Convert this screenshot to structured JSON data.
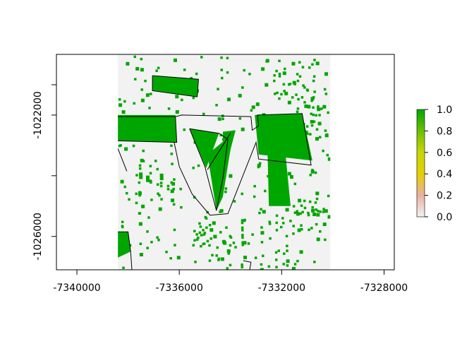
{
  "map": {
    "x_axis": {
      "ticks": [
        {
          "value": -7340000,
          "label": "-7340000"
        },
        {
          "value": -7336000,
          "label": "-7336000"
        },
        {
          "value": -7332000,
          "label": "-7332000"
        },
        {
          "value": -7328000,
          "label": "-7328000"
        }
      ]
    },
    "y_axis": {
      "ticks": [
        {
          "value": -1022000,
          "label": "-1022000"
        },
        {
          "value": -1026000,
          "label": "-1026000"
        }
      ]
    },
    "extent_data_units": {
      "xmin": -7340800,
      "xmax": -7327600,
      "ymin": -1027100,
      "ymax": -1020000
    },
    "raster_extent_data_units": {
      "xmin": -7338400,
      "xmax": -7330100,
      "ymin": -1027100,
      "ymax": -1020000
    },
    "raster_background_color": "#f2f2f2",
    "legend": {
      "ticks": [
        {
          "value": 1.0,
          "label": "1.0"
        },
        {
          "value": 0.8,
          "label": "0.8"
        },
        {
          "value": 0.6,
          "label": "0.6"
        },
        {
          "value": 0.4,
          "label": "0.4"
        },
        {
          "value": 0.2,
          "label": "0.2"
        },
        {
          "value": 0.0,
          "label": "0.0"
        }
      ],
      "color_stops": [
        {
          "value": 0.0,
          "color": "#f2f2f2"
        },
        {
          "value": 0.2,
          "color": "#eab0a0"
        },
        {
          "value": 0.4,
          "color": "#e6d000"
        },
        {
          "value": 0.6,
          "color": "#c6d800"
        },
        {
          "value": 0.8,
          "color": "#6cc000"
        },
        {
          "value": 1.0,
          "color": "#00a600"
        }
      ]
    },
    "green_color": "#00a600",
    "green_regions": [
      {
        "name": "top-parcel",
        "points": [
          [
            -7337050,
            -1020700
          ],
          [
            -7335250,
            -1020820
          ],
          [
            -7335300,
            -1021400
          ],
          [
            -7337050,
            -1021200
          ]
        ]
      },
      {
        "name": "left-parcel",
        "points": [
          [
            -7338400,
            -1022000
          ],
          [
            -7336150,
            -1022000
          ],
          [
            -7336100,
            -1022900
          ],
          [
            -7338400,
            -1022850
          ]
        ]
      },
      {
        "name": "triangle-upper",
        "points": [
          [
            -7335600,
            -1022450
          ],
          [
            -7334450,
            -1022600
          ],
          [
            -7334950,
            -1023750
          ]
        ]
      },
      {
        "name": "triangle-lower",
        "points": [
          [
            -7334900,
            -1023300
          ],
          [
            -7333900,
            -1022600
          ],
          [
            -7334300,
            -1024700
          ],
          [
            -7334550,
            -1025150
          ]
        ]
      },
      {
        "name": "triangle-right",
        "points": [
          [
            -7334300,
            -1022550
          ],
          [
            -7333800,
            -1022500
          ],
          [
            -7334300,
            -1024100
          ]
        ]
      },
      {
        "name": "right-block",
        "points": [
          [
            -7333050,
            -1022000
          ],
          [
            -7331200,
            -1021950
          ],
          [
            -7330800,
            -1023500
          ],
          [
            -7332900,
            -1023300
          ]
        ]
      },
      {
        "name": "right-strip",
        "points": [
          [
            -7332550,
            -1023300
          ],
          [
            -7331850,
            -1023300
          ],
          [
            -7331650,
            -1025000
          ],
          [
            -7332500,
            -1025000
          ]
        ]
      },
      {
        "name": "left-bottom",
        "points": [
          [
            -7338400,
            -1025850
          ],
          [
            -7338000,
            -1025850
          ],
          [
            -7337900,
            -1026500
          ],
          [
            -7338400,
            -1026700
          ]
        ]
      }
    ],
    "boundary_lines": [
      {
        "points": [
          [
            -7337050,
            -1020700
          ],
          [
            -7335250,
            -1020820
          ],
          [
            -7335300,
            -1021400
          ],
          [
            -7337050,
            -1021200
          ],
          [
            -7337050,
            -1020700
          ]
        ]
      },
      {
        "points": [
          [
            -7338400,
            -1022050
          ],
          [
            -7336150,
            -1022050
          ],
          [
            -7336100,
            -1022900
          ],
          [
            -7338400,
            -1022850
          ]
        ]
      },
      {
        "points": [
          [
            -7336150,
            -1022050
          ],
          [
            -7335900,
            -1022000
          ],
          [
            -7333200,
            -1022050
          ],
          [
            -7333150,
            -1022500
          ],
          [
            -7332900,
            -1022350
          ],
          [
            -7332950,
            -1022000
          ],
          [
            -7331200,
            -1021950
          ],
          [
            -7330850,
            -1023650
          ],
          [
            -7332900,
            -1023450
          ],
          [
            -7333000,
            -1022900
          ],
          [
            -7334100,
            -1025250
          ],
          [
            -7334800,
            -1025300
          ],
          [
            -7335500,
            -1024600
          ],
          [
            -7336000,
            -1023700
          ],
          [
            -7336200,
            -1022900
          ]
        ]
      },
      {
        "points": [
          [
            -7335600,
            -1022450
          ],
          [
            -7334450,
            -1022600
          ],
          [
            -7334100,
            -1022800
          ],
          [
            -7334300,
            -1024100
          ],
          [
            -7334550,
            -1025150
          ],
          [
            -7335000,
            -1023700
          ],
          [
            -7335600,
            -1022450
          ]
        ]
      },
      {
        "points": [
          [
            -7334900,
            -1023800
          ],
          [
            -7334000,
            -1022600
          ]
        ]
      },
      {
        "points": [
          [
            -7338400,
            -1023100
          ],
          [
            -7338050,
            -1023850
          ]
        ]
      },
      {
        "points": [
          [
            -7338400,
            -1025850
          ],
          [
            -7338000,
            -1025850
          ],
          [
            -7337900,
            -1026500
          ],
          [
            -7337850,
            -1027100
          ]
        ]
      },
      {
        "points": [
          [
            -7333500,
            -1026800
          ],
          [
            -7333200,
            -1026850
          ],
          [
            -7333250,
            -1027100
          ]
        ]
      }
    ]
  }
}
